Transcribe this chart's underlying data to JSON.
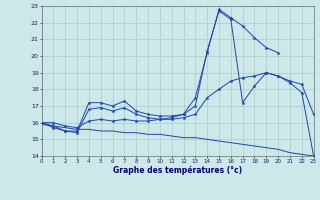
{
  "xlabel": "Graphe des températures (°c)",
  "bg_color": "#cce8e8",
  "grid_color": "#aacccc",
  "line_color": "#2244aa",
  "xlim": [
    0,
    23
  ],
  "ylim": [
    14,
    23
  ],
  "xticks": [
    0,
    1,
    2,
    3,
    4,
    5,
    6,
    7,
    8,
    9,
    10,
    11,
    12,
    13,
    14,
    15,
    16,
    17,
    18,
    19,
    20,
    21,
    22,
    23
  ],
  "yticks": [
    14,
    15,
    16,
    17,
    18,
    19,
    20,
    21,
    22,
    23
  ],
  "series": [
    {
      "x": [
        0,
        1,
        2,
        3,
        4,
        5,
        6,
        7,
        8,
        9,
        10,
        11,
        12,
        13,
        14,
        15,
        16,
        17,
        18,
        19,
        20,
        21,
        22,
        23
      ],
      "y": [
        16.0,
        16.0,
        15.8,
        15.7,
        16.1,
        16.2,
        16.1,
        16.2,
        16.1,
        16.1,
        16.2,
        16.2,
        16.3,
        16.5,
        17.5,
        18.0,
        18.5,
        18.7,
        18.8,
        19.0,
        18.8,
        18.5,
        18.3,
        16.5
      ],
      "has_markers": true
    },
    {
      "x": [
        0,
        1,
        2,
        3,
        4,
        5,
        6,
        7,
        8,
        9,
        10,
        11,
        12,
        13,
        14,
        15,
        16,
        17,
        18,
        19,
        20
      ],
      "y": [
        16.0,
        15.8,
        15.5,
        15.4,
        16.8,
        16.9,
        16.7,
        16.9,
        16.5,
        16.3,
        16.2,
        16.3,
        16.5,
        17.5,
        20.2,
        22.8,
        22.3,
        21.8,
        21.1,
        20.5,
        20.2
      ],
      "has_markers": true
    },
    {
      "x": [
        0,
        1,
        2,
        3,
        4,
        5,
        6,
        7,
        8,
        9,
        10,
        11,
        12,
        13,
        14,
        15,
        16,
        17,
        18,
        19,
        20,
        21,
        22,
        23
      ],
      "y": [
        15.9,
        15.8,
        15.7,
        15.6,
        15.6,
        15.5,
        15.5,
        15.4,
        15.4,
        15.3,
        15.3,
        15.2,
        15.1,
        15.1,
        15.0,
        14.9,
        14.8,
        14.7,
        14.6,
        14.5,
        14.4,
        14.2,
        14.1,
        14.0
      ],
      "has_markers": false
    },
    {
      "x": [
        0,
        1,
        2,
        3,
        4,
        5,
        6,
        7,
        8,
        9,
        10,
        11,
        12,
        13,
        14,
        15,
        16,
        17,
        18,
        19,
        20,
        21,
        22,
        23
      ],
      "y": [
        16.0,
        15.7,
        15.5,
        15.5,
        17.2,
        17.2,
        17.0,
        17.3,
        16.7,
        16.5,
        16.4,
        16.4,
        16.5,
        17.0,
        20.3,
        22.7,
        22.2,
        17.2,
        18.2,
        19.0,
        18.8,
        18.4,
        17.8,
        14.0
      ],
      "has_markers": true
    }
  ]
}
